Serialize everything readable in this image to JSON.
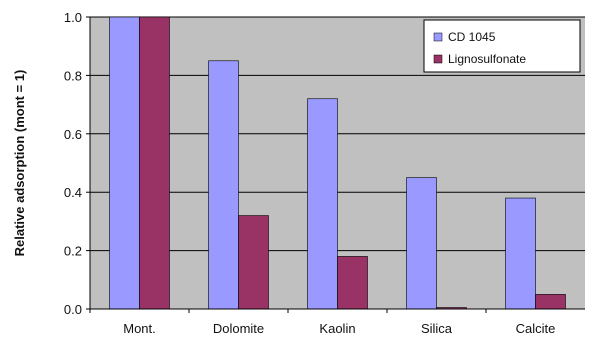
{
  "chart_data": {
    "type": "bar",
    "title": "",
    "xlabel": "",
    "ylabel": "Relative adsorption (mont = 1)",
    "categories": [
      "Mont.",
      "Dolomite",
      "Kaolin",
      "Silica",
      "Calcite"
    ],
    "series": [
      {
        "name": "CD 1045",
        "values": [
          1.0,
          0.85,
          0.72,
          0.45,
          0.38
        ],
        "color": "#9999ff"
      },
      {
        "name": "Lignosulfonate",
        "values": [
          1.0,
          0.32,
          0.18,
          0.005,
          0.05
        ],
        "color": "#993366"
      }
    ],
    "ylim": [
      0,
      1.0
    ],
    "yticks": [
      "0.0",
      "0.2",
      "0.4",
      "0.6",
      "0.8",
      "1.0"
    ],
    "grid": true,
    "plot_background": "#c0c0c0",
    "legend_position": "top-right"
  }
}
